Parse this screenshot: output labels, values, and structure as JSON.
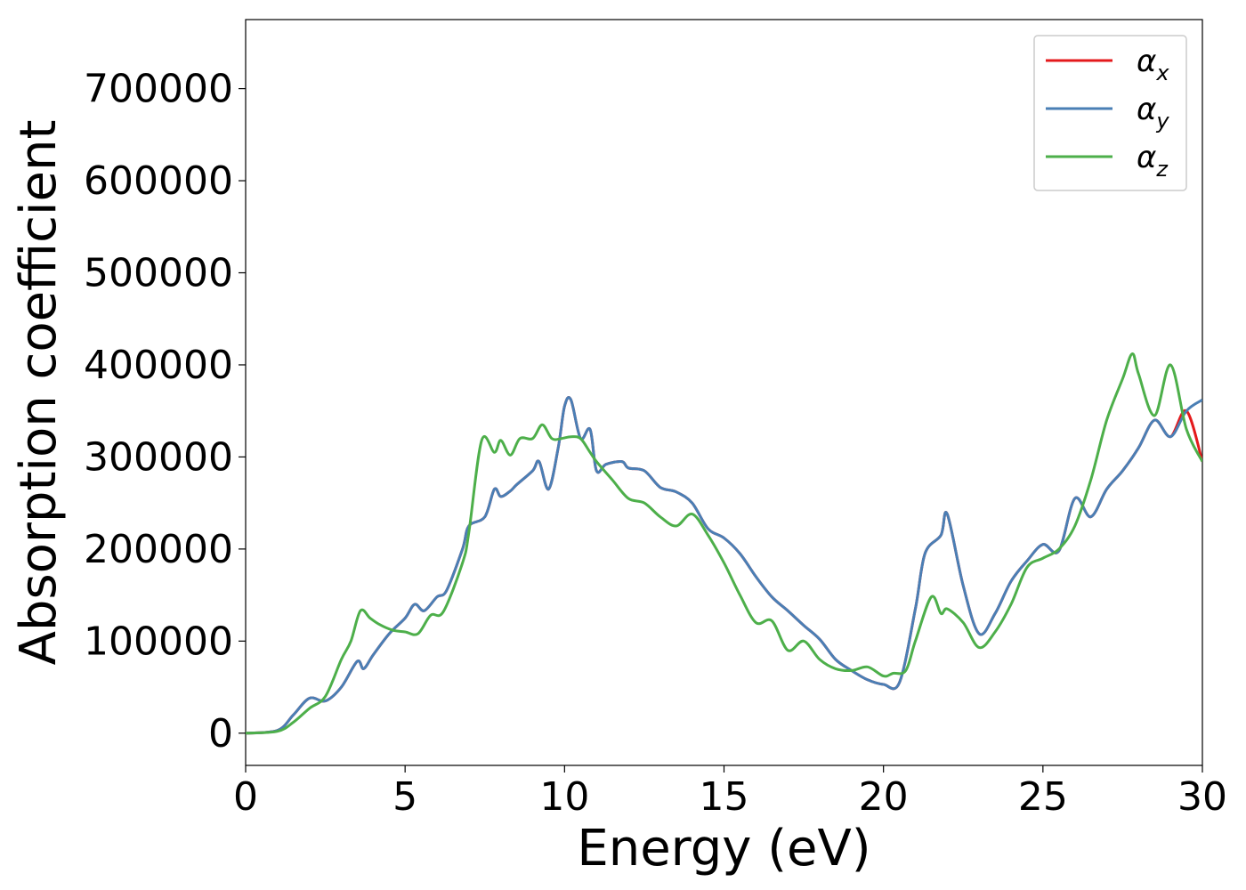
{
  "chart_data": {
    "type": "line",
    "title": "",
    "xlabel": "Energy (eV)",
    "ylabel": "Absorption coefficient",
    "xlim": [
      0,
      30
    ],
    "ylim": [
      -35000,
      775000
    ],
    "xticks": [
      0,
      5,
      10,
      15,
      20,
      25,
      30
    ],
    "yticks": [
      0,
      100000,
      200000,
      300000,
      400000,
      500000,
      600000,
      700000
    ],
    "xtick_labels": [
      "0",
      "5",
      "10",
      "15",
      "20",
      "25",
      "30"
    ],
    "ytick_labels": [
      "0",
      "100000",
      "200000",
      "300000",
      "400000",
      "500000",
      "600000",
      "700000"
    ],
    "grid": false,
    "legend_position": "top-right",
    "colors": {
      "x": "#e41a1c",
      "y": "#4a7fb5",
      "z": "#4daf4a"
    },
    "series": [
      {
        "name": "α_x",
        "legend_symbol": "α",
        "legend_sub": "x",
        "color": "#e41a1c",
        "x": [
          0,
          1,
          1.5,
          2,
          2.5,
          3,
          3.5,
          3.7,
          4,
          4.5,
          5,
          5.3,
          5.6,
          6,
          6.3,
          6.8,
          7,
          7.5,
          7.8,
          8,
          8.3,
          8.5,
          9,
          9.2,
          9.5,
          9.8,
          10,
          10.2,
          10.5,
          10.8,
          11,
          11.3,
          11.8,
          12,
          12.5,
          13,
          13.5,
          14,
          14.5,
          15,
          15.5,
          16,
          16.5,
          17,
          17.5,
          18,
          18.5,
          19,
          19.5,
          20,
          20.5,
          21,
          21.3,
          21.8,
          22,
          22.5,
          23,
          23.5,
          24,
          24.5,
          25,
          25.5,
          26,
          26.5,
          27,
          27.5,
          28,
          28.5,
          29,
          29.5,
          30
        ],
        "y": [
          0,
          3000,
          20000,
          38000,
          35000,
          50000,
          78000,
          70000,
          85000,
          108000,
          125000,
          140000,
          133000,
          148000,
          155000,
          200000,
          225000,
          235000,
          265000,
          257000,
          263000,
          270000,
          285000,
          295000,
          265000,
          310000,
          355000,
          362000,
          320000,
          330000,
          285000,
          292000,
          295000,
          288000,
          285000,
          267000,
          262000,
          250000,
          222000,
          212000,
          195000,
          170000,
          148000,
          133000,
          117000,
          102000,
          80000,
          68000,
          58000,
          53000,
          55000,
          135000,
          195000,
          215000,
          238000,
          160000,
          108000,
          130000,
          165000,
          187000,
          205000,
          198000,
          255000,
          235000,
          265000,
          285000,
          310000,
          340000,
          322000,
          350000,
          295000
        ]
      },
      {
        "name": "α_y",
        "legend_symbol": "α",
        "legend_sub": "y",
        "color": "#4a7fb5",
        "x": [
          0,
          1,
          1.5,
          2,
          2.5,
          3,
          3.5,
          3.7,
          4,
          4.5,
          5,
          5.3,
          5.6,
          6,
          6.3,
          6.8,
          7,
          7.5,
          7.8,
          8,
          8.3,
          8.5,
          9,
          9.2,
          9.5,
          9.8,
          10,
          10.2,
          10.5,
          10.8,
          11,
          11.3,
          11.8,
          12,
          12.5,
          13,
          13.5,
          14,
          14.5,
          15,
          15.5,
          16,
          16.5,
          17,
          17.5,
          18,
          18.5,
          19,
          19.5,
          20,
          20.5,
          21,
          21.3,
          21.8,
          22,
          22.5,
          23,
          23.5,
          24,
          24.5,
          25,
          25.5,
          26,
          26.5,
          27,
          27.5,
          28,
          28.5,
          29,
          29.5,
          30
        ],
        "y": [
          0,
          3000,
          20000,
          38000,
          35000,
          50000,
          78000,
          70000,
          85000,
          108000,
          125000,
          140000,
          133000,
          148000,
          155000,
          200000,
          225000,
          235000,
          265000,
          257000,
          263000,
          270000,
          285000,
          295000,
          265000,
          310000,
          355000,
          362000,
          320000,
          330000,
          285000,
          292000,
          295000,
          288000,
          285000,
          267000,
          262000,
          250000,
          222000,
          212000,
          195000,
          170000,
          148000,
          133000,
          117000,
          102000,
          80000,
          68000,
          58000,
          53000,
          55000,
          135000,
          195000,
          215000,
          238000,
          160000,
          108000,
          130000,
          165000,
          187000,
          205000,
          198000,
          255000,
          235000,
          265000,
          285000,
          310000,
          340000,
          322000,
          350000,
          362000
        ]
      },
      {
        "name": "α_z",
        "legend_symbol": "α",
        "legend_sub": "z",
        "color": "#4daf4a",
        "x": [
          0,
          1,
          1.5,
          2,
          2.5,
          3,
          3.3,
          3.6,
          3.9,
          4.2,
          4.6,
          5,
          5.4,
          5.8,
          6.2,
          6.8,
          7,
          7.4,
          7.8,
          8,
          8.3,
          8.6,
          9,
          9.3,
          9.6,
          9.9,
          10.2,
          10.5,
          10.8,
          11,
          11.5,
          12,
          12.5,
          13,
          13.5,
          14,
          14.5,
          15,
          15.5,
          16,
          16.5,
          17,
          17.5,
          18,
          18.5,
          19,
          19.5,
          20,
          20.3,
          20.7,
          21,
          21.5,
          21.8,
          22,
          22.5,
          23,
          23.5,
          24,
          24.5,
          25,
          25.5,
          26,
          26.5,
          27,
          27.5,
          27.8,
          28,
          28.5,
          29,
          29.5,
          30
        ],
        "y": [
          0,
          2000,
          12000,
          27000,
          40000,
          80000,
          100000,
          133000,
          125000,
          118000,
          112000,
          110000,
          108000,
          128000,
          132000,
          185000,
          218000,
          318000,
          305000,
          318000,
          302000,
          320000,
          320000,
          335000,
          320000,
          320000,
          322000,
          320000,
          305000,
          295000,
          275000,
          255000,
          250000,
          235000,
          225000,
          238000,
          215000,
          185000,
          150000,
          120000,
          122000,
          90000,
          100000,
          80000,
          70000,
          68000,
          72000,
          62000,
          65000,
          68000,
          100000,
          148000,
          130000,
          135000,
          120000,
          93000,
          110000,
          140000,
          180000,
          190000,
          200000,
          225000,
          275000,
          340000,
          385000,
          412000,
          390000,
          345000,
          400000,
          330000,
          295000
        ]
      }
    ]
  }
}
